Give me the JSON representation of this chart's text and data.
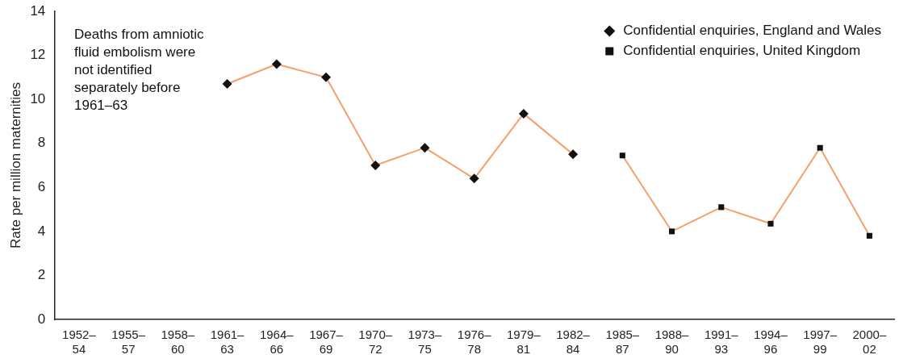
{
  "chart_data": {
    "type": "line",
    "ylabel": "Rate per million maternities",
    "categories": [
      "1952–54",
      "1955–57",
      "1958–60",
      "1961–63",
      "1964–66",
      "1967–69",
      "1970–72",
      "1973–75",
      "1976–78",
      "1979–81",
      "1982–84",
      "1985–87",
      "1988–90",
      "1991–93",
      "1994–96",
      "1997–99",
      "2000–02"
    ],
    "series": [
      {
        "name": "Confidential enquiries, England and Wales",
        "color": "#f4a06c",
        "marker": "diamond",
        "values": [
          null,
          null,
          null,
          10.7,
          11.6,
          11.0,
          7.0,
          7.8,
          6.4,
          9.35,
          7.5,
          null,
          null,
          null,
          null,
          null,
          null
        ]
      },
      {
        "name": "Confidential enquiries, United Kingdom",
        "color": "#f4a06c",
        "marker": "square",
        "values": [
          null,
          null,
          null,
          null,
          null,
          null,
          null,
          null,
          null,
          null,
          null,
          7.45,
          4.0,
          5.1,
          4.35,
          7.8,
          3.8
        ]
      }
    ],
    "ylim": [
      0,
      14
    ],
    "yticks": [
      0,
      2,
      4,
      6,
      8,
      10,
      12,
      14
    ],
    "grid": false,
    "legend": "top right",
    "annotations": [
      "Deaths from amniotic fluid embolism were not identified separately before 1961–63"
    ]
  }
}
